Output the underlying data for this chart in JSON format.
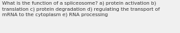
{
  "text": "What is the function of a spliceosome? a) protein activation b)\ntranslation c) protein degradation d) regulating the transport of\nmRNA to the cytoplasm e) RNA processing",
  "background_color": "#f0f0f0",
  "text_color": "#333333",
  "font_size": 5.2,
  "figsize": [
    2.62,
    0.49
  ]
}
